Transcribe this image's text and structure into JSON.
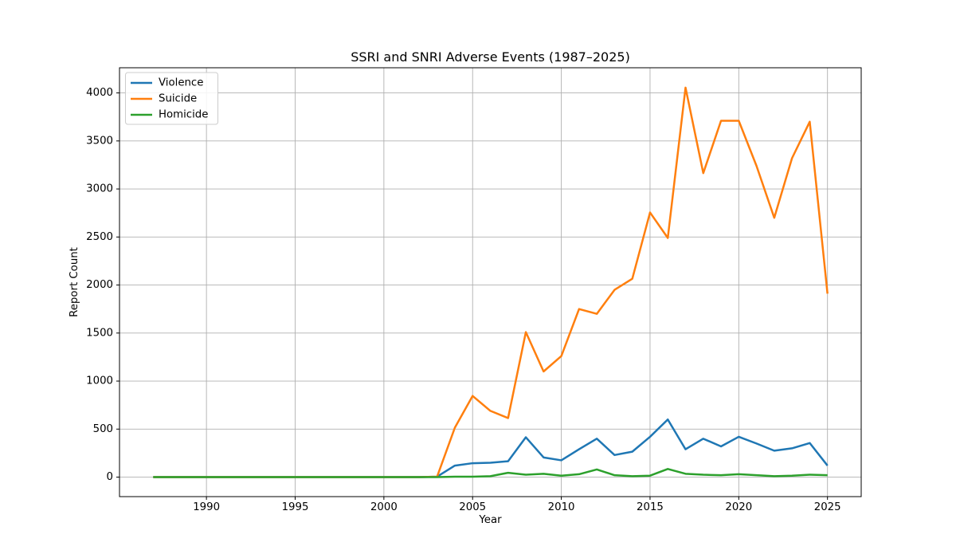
{
  "chart_data": {
    "type": "line",
    "title": "SSRI and SNRI Adverse Events (1987–2025)",
    "xlabel": "Year",
    "ylabel": "Report Count",
    "x": [
      1987,
      1988,
      1989,
      1990,
      1991,
      1992,
      1993,
      1994,
      1995,
      1996,
      1997,
      1998,
      1999,
      2000,
      2001,
      2002,
      2003,
      2004,
      2005,
      2006,
      2007,
      2008,
      2009,
      2010,
      2011,
      2012,
      2013,
      2014,
      2015,
      2016,
      2017,
      2018,
      2019,
      2020,
      2021,
      2022,
      2023,
      2024,
      2025
    ],
    "series": [
      {
        "name": "Violence",
        "color": "#1f77b4",
        "values": [
          0,
          0,
          0,
          0,
          0,
          0,
          0,
          0,
          0,
          0,
          0,
          0,
          0,
          0,
          0,
          0,
          5,
          120,
          145,
          150,
          165,
          415,
          205,
          175,
          290,
          400,
          230,
          265,
          420,
          600,
          290,
          400,
          320,
          420,
          350,
          275,
          300,
          355,
          120
        ]
      },
      {
        "name": "Suicide",
        "color": "#ff7f0e",
        "values": [
          0,
          0,
          0,
          0,
          0,
          0,
          0,
          0,
          0,
          0,
          0,
          0,
          0,
          0,
          0,
          0,
          5,
          515,
          845,
          690,
          615,
          1510,
          1100,
          1260,
          1750,
          1700,
          1950,
          2065,
          2755,
          2490,
          4055,
          3165,
          3710,
          3710,
          3240,
          2700,
          3320,
          3700,
          1910
        ]
      },
      {
        "name": "Homicide",
        "color": "#2ca02c",
        "values": [
          0,
          0,
          0,
          0,
          0,
          0,
          0,
          0,
          0,
          0,
          0,
          0,
          0,
          0,
          0,
          0,
          0,
          5,
          5,
          10,
          45,
          25,
          35,
          15,
          30,
          80,
          20,
          10,
          15,
          85,
          35,
          25,
          20,
          30,
          20,
          10,
          15,
          25,
          20
        ]
      }
    ],
    "x_ticks": [
      1990,
      1995,
      2000,
      2005,
      2010,
      2015,
      2020,
      2025
    ],
    "y_ticks": [
      0,
      500,
      1000,
      1500,
      2000,
      2500,
      3000,
      3500,
      4000
    ],
    "xlim": [
      1985.1,
      2026.9
    ],
    "ylim": [
      -203,
      4262
    ],
    "grid": true,
    "legend_position": "upper left",
    "grid_color": "#b0b0b0",
    "axis_color": "#000000",
    "legend_border_color": "#cccccc",
    "background": "#ffffff"
  }
}
